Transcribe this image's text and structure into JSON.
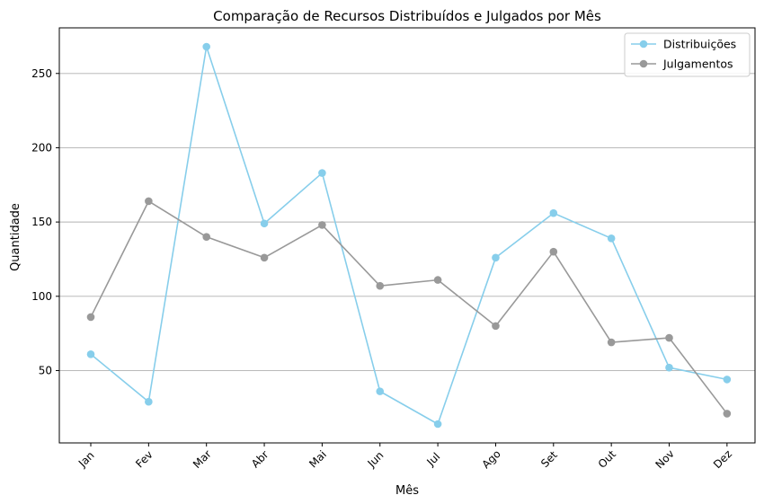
{
  "chart_data": {
    "type": "line",
    "title": "Comparação de Recursos Distribuídos e Julgados por Mês",
    "xlabel": "Mês",
    "ylabel": "Quantidade",
    "categories": [
      "Jan",
      "Fev",
      "Mar",
      "Abr",
      "Mai",
      "Jun",
      "Jul",
      "Ago",
      "Set",
      "Out",
      "Nov",
      "Dez"
    ],
    "series": [
      {
        "name": "Distribuições",
        "color": "#87ceeb",
        "values": [
          61,
          29,
          268,
          149,
          183,
          36,
          14,
          126,
          156,
          139,
          52,
          44
        ]
      },
      {
        "name": "Julgamentos",
        "color": "#999999",
        "values": [
          86,
          164,
          140,
          126,
          148,
          107,
          111,
          80,
          130,
          69,
          72,
          21
        ]
      }
    ],
    "yticks": [
      50,
      100,
      150,
      200,
      250
    ],
    "ylim": [
      1.3,
      280.7
    ],
    "grid": "y-axis horizontal lines",
    "legend": "top-right",
    "marker": "circle"
  }
}
